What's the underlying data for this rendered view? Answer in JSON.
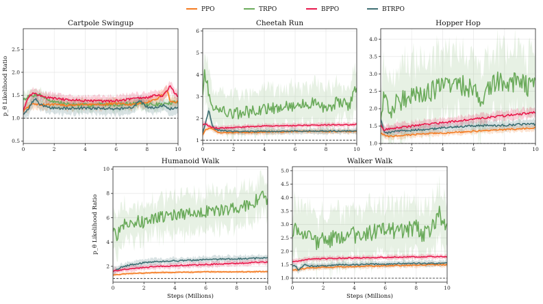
{
  "legend": [
    {
      "name": "PPO",
      "color": "#f47a1f"
    },
    {
      "name": "TRPO",
      "color": "#6aaa5a"
    },
    {
      "name": "BPPO",
      "color": "#e8174a"
    },
    {
      "name": "BTRPO",
      "color": "#3d6e72"
    }
  ],
  "chart_data": [
    {
      "type": "line",
      "title": "Cartpole Swingup",
      "xlabel": "",
      "ylabel": "p_θ Likelihood Ratio",
      "xlim": [
        0,
        10
      ],
      "ylim": [
        0.45,
        2.95
      ],
      "xticks": [
        0,
        2,
        4,
        6,
        8,
        10
      ],
      "yticks": [
        0.5,
        1.0,
        1.5,
        2.0,
        2.5
      ],
      "ytick_labels": [
        "0.5",
        "1.0",
        "1.5",
        "2.0",
        "2.5"
      ],
      "reference_line": 1.0,
      "series": [
        {
          "name": "PPO",
          "x": [
            0,
            0.5,
            1,
            1.5,
            2,
            3,
            4,
            5,
            6,
            7,
            8,
            8.5,
            9,
            9.3,
            9.5,
            10
          ],
          "y": [
            1.15,
            1.3,
            1.3,
            1.3,
            1.3,
            1.28,
            1.3,
            1.3,
            1.32,
            1.3,
            1.35,
            1.4,
            1.5,
            1.6,
            1.35,
            1.35
          ],
          "band": 0.1
        },
        {
          "name": "TRPO",
          "x": [
            0,
            0.5,
            1,
            1.5,
            2,
            3,
            4,
            5,
            6,
            7,
            8,
            9,
            10
          ],
          "y": [
            1.42,
            1.48,
            1.53,
            1.42,
            1.36,
            1.3,
            1.28,
            1.3,
            1.3,
            1.32,
            1.3,
            1.3,
            1.35
          ],
          "band": 0.12
        },
        {
          "name": "BPPO",
          "x": [
            0,
            0.3,
            0.6,
            1,
            1.5,
            2,
            3,
            4,
            5,
            6,
            7,
            8,
            8.5,
            9,
            9.5,
            10
          ],
          "y": [
            1.18,
            1.45,
            1.55,
            1.5,
            1.45,
            1.43,
            1.4,
            1.38,
            1.37,
            1.38,
            1.42,
            1.45,
            1.5,
            1.48,
            1.7,
            1.45
          ],
          "band": 0.1
        },
        {
          "name": "BTRPO",
          "x": [
            0,
            0.3,
            0.6,
            0.8,
            1,
            1.5,
            2,
            3,
            4,
            5,
            6,
            7,
            7.5,
            8,
            8.5,
            9,
            9.5,
            10
          ],
          "y": [
            1.1,
            1.2,
            1.35,
            1.45,
            1.3,
            1.25,
            1.22,
            1.22,
            1.22,
            1.22,
            1.2,
            1.22,
            1.38,
            1.25,
            1.22,
            1.28,
            1.2,
            1.25
          ],
          "band": 0.12
        }
      ]
    },
    {
      "type": "line",
      "title": "Cheetah Run",
      "xlabel": "",
      "ylabel": "",
      "xlim": [
        0,
        10
      ],
      "ylim": [
        0.85,
        6.1
      ],
      "xticks": [
        0,
        2,
        4,
        6,
        8,
        10
      ],
      "yticks": [
        1,
        2,
        3,
        4,
        5,
        6
      ],
      "ytick_labels": [
        "1",
        "2",
        "3",
        "4",
        "5",
        "6"
      ],
      "reference_line": 1.0,
      "series": [
        {
          "name": "PPO",
          "x": [
            0,
            0.2,
            0.5,
            1,
            2,
            3,
            4,
            5,
            6,
            7,
            8,
            9,
            10
          ],
          "y": [
            1.25,
            1.5,
            1.55,
            1.35,
            1.35,
            1.35,
            1.38,
            1.38,
            1.4,
            1.4,
            1.4,
            1.4,
            1.4
          ],
          "band": 0.1
        },
        {
          "name": "TRPO",
          "x": [
            0,
            0.1,
            0.3,
            0.5,
            1,
            2,
            3,
            4,
            5,
            6,
            7,
            8,
            9,
            9.5,
            10
          ],
          "y": [
            3.2,
            4.2,
            3.5,
            2.7,
            2.4,
            2.2,
            2.3,
            2.4,
            2.5,
            2.6,
            2.7,
            2.5,
            2.8,
            2.6,
            3.5
          ],
          "band": 0.8
        },
        {
          "name": "BPPO",
          "x": [
            0,
            0.2,
            0.5,
            1,
            2,
            3,
            4,
            5,
            6,
            7,
            8,
            9,
            10
          ],
          "y": [
            1.7,
            1.75,
            1.6,
            1.55,
            1.58,
            1.62,
            1.65,
            1.65,
            1.67,
            1.68,
            1.7,
            1.7,
            1.72
          ],
          "band": 0.1
        },
        {
          "name": "BTRPO",
          "x": [
            0,
            0.2,
            0.4,
            0.6,
            0.8,
            1,
            2,
            3,
            4,
            5,
            6,
            7,
            8,
            9,
            10
          ],
          "y": [
            1.35,
            1.8,
            2.4,
            1.7,
            1.5,
            1.45,
            1.4,
            1.4,
            1.4,
            1.4,
            1.42,
            1.42,
            1.42,
            1.42,
            1.42
          ],
          "band": 0.12
        }
      ]
    },
    {
      "type": "line",
      "title": "Hopper Hop",
      "xlabel": "",
      "ylabel": "",
      "xlim": [
        0,
        10
      ],
      "ylim": [
        1.0,
        4.3
      ],
      "xticks": [
        0,
        2,
        4,
        6,
        8,
        10
      ],
      "yticks": [
        1.0,
        1.5,
        2.0,
        2.5,
        3.0,
        3.5,
        4.0
      ],
      "ytick_labels": [
        "1.0",
        "1.5",
        "2.0",
        "2.5",
        "3.0",
        "3.5",
        "4.0"
      ],
      "reference_line": 1.0,
      "series": [
        {
          "name": "PPO",
          "x": [
            0,
            0.5,
            1,
            2,
            3,
            4,
            5,
            6,
            7,
            8,
            9,
            10
          ],
          "y": [
            1.3,
            1.2,
            1.22,
            1.25,
            1.28,
            1.3,
            1.32,
            1.35,
            1.38,
            1.4,
            1.42,
            1.45
          ],
          "band": 0.08
        },
        {
          "name": "TRPO",
          "x": [
            0,
            0.2,
            0.5,
            1,
            1.5,
            2,
            3,
            4,
            5,
            6,
            6.5,
            7,
            8,
            9,
            9.5,
            10
          ],
          "y": [
            1.8,
            2.2,
            1.9,
            2.1,
            2.3,
            2.45,
            2.5,
            2.6,
            2.7,
            2.55,
            2.35,
            2.7,
            2.8,
            2.75,
            2.6,
            2.85
          ],
          "band": 0.9
        },
        {
          "name": "BPPO",
          "x": [
            0,
            0.2,
            0.5,
            1,
            2,
            3,
            4,
            5,
            6,
            7,
            8,
            9,
            10
          ],
          "y": [
            1.55,
            1.4,
            1.42,
            1.45,
            1.5,
            1.55,
            1.6,
            1.65,
            1.7,
            1.75,
            1.8,
            1.85,
            1.9
          ],
          "band": 0.12
        },
        {
          "name": "BTRPO",
          "x": [
            0,
            0.2,
            0.5,
            1,
            2,
            3,
            4,
            5,
            6,
            7,
            8,
            9,
            10
          ],
          "y": [
            1.7,
            1.35,
            1.3,
            1.35,
            1.38,
            1.4,
            1.45,
            1.48,
            1.5,
            1.52,
            1.52,
            1.55,
            1.55
          ],
          "band": 0.12
        }
      ]
    },
    {
      "type": "line",
      "title": "Humanoid Walk",
      "xlabel": "Steps (Millions)",
      "ylabel": "p_θ Likelihood Ratio",
      "xlim": [
        0,
        10
      ],
      "ylim": [
        0.7,
        10.2
      ],
      "xticks": [
        0,
        2,
        4,
        6,
        8,
        10
      ],
      "yticks": [
        2,
        4,
        6,
        8,
        10
      ],
      "ytick_labels": [
        "2",
        "4",
        "6",
        "8",
        "10"
      ],
      "reference_line": 1.0,
      "series": [
        {
          "name": "PPO",
          "x": [
            0,
            0.5,
            1,
            2,
            3,
            4,
            5,
            6,
            7,
            8,
            9,
            10
          ],
          "y": [
            1.3,
            1.35,
            1.4,
            1.45,
            1.5,
            1.5,
            1.52,
            1.55,
            1.55,
            1.55,
            1.55,
            1.58
          ],
          "band": 0.1
        },
        {
          "name": "TRPO",
          "x": [
            0,
            0.2,
            0.5,
            1,
            1.5,
            2,
            3,
            4,
            5,
            6,
            7,
            8,
            8.5,
            9,
            9.5,
            10
          ],
          "y": [
            5.0,
            4.3,
            5.5,
            5.3,
            5.8,
            5.6,
            6.0,
            6.2,
            6.3,
            6.5,
            6.6,
            6.8,
            7.0,
            7.1,
            7.8,
            7.5
          ],
          "band": 1.4
        },
        {
          "name": "BPPO",
          "x": [
            0,
            0.5,
            1,
            2,
            3,
            4,
            5,
            6,
            7,
            8,
            9,
            10
          ],
          "y": [
            1.6,
            1.7,
            1.8,
            1.9,
            2.0,
            2.05,
            2.1,
            2.15,
            2.2,
            2.25,
            2.3,
            2.35
          ],
          "band": 0.2
        },
        {
          "name": "BTRPO",
          "x": [
            0,
            0.5,
            1,
            2,
            3,
            4,
            5,
            6,
            7,
            8,
            9,
            10
          ],
          "y": [
            1.6,
            1.9,
            2.1,
            2.3,
            2.4,
            2.45,
            2.5,
            2.55,
            2.6,
            2.62,
            2.65,
            2.7
          ],
          "band": 0.25
        }
      ]
    },
    {
      "type": "line",
      "title": "Walker Walk",
      "xlabel": "Steps (Millions)",
      "ylabel": "",
      "xlim": [
        0,
        10
      ],
      "ylim": [
        0.85,
        5.15
      ],
      "xticks": [
        0,
        2,
        4,
        6,
        8,
        10
      ],
      "yticks": [
        1.0,
        1.5,
        2.0,
        2.5,
        3.0,
        3.5,
        4.0,
        4.5,
        5.0
      ],
      "ytick_labels": [
        "1.0",
        "1.5",
        "2.0",
        "2.5",
        "3.0",
        "3.5",
        "4.0",
        "4.5",
        "5.0"
      ],
      "reference_line": 1.0,
      "series": [
        {
          "name": "PPO",
          "x": [
            0,
            0.5,
            1,
            2,
            3,
            4,
            5,
            6,
            7,
            8,
            9,
            10
          ],
          "y": [
            1.3,
            1.32,
            1.38,
            1.4,
            1.42,
            1.43,
            1.45,
            1.46,
            1.47,
            1.48,
            1.5,
            1.5
          ],
          "band": 0.08
        },
        {
          "name": "TRPO",
          "x": [
            0,
            0.2,
            0.5,
            1,
            1.5,
            2,
            3,
            4,
            5,
            6,
            7,
            8,
            8.5,
            9,
            9.5,
            10
          ],
          "y": [
            2.6,
            3.0,
            2.8,
            2.5,
            2.3,
            2.4,
            2.5,
            2.6,
            2.7,
            2.8,
            2.7,
            2.9,
            2.6,
            2.8,
            3.4,
            2.9
          ],
          "band": 0.9
        },
        {
          "name": "BPPO",
          "x": [
            0,
            0.5,
            1,
            2,
            3,
            4,
            5,
            6,
            7,
            8,
            9,
            10
          ],
          "y": [
            1.6,
            1.65,
            1.7,
            1.72,
            1.74,
            1.75,
            1.76,
            1.77,
            1.78,
            1.79,
            1.8,
            1.8
          ],
          "band": 0.08
        },
        {
          "name": "BTRPO",
          "x": [
            0,
            0.2,
            0.4,
            0.8,
            1,
            2,
            3,
            4,
            5,
            6,
            7,
            8,
            9,
            10
          ],
          "y": [
            1.45,
            1.45,
            1.3,
            1.5,
            1.45,
            1.45,
            1.5,
            1.5,
            1.52,
            1.52,
            1.55,
            1.55,
            1.55,
            1.55
          ],
          "band": 0.1
        }
      ]
    }
  ]
}
